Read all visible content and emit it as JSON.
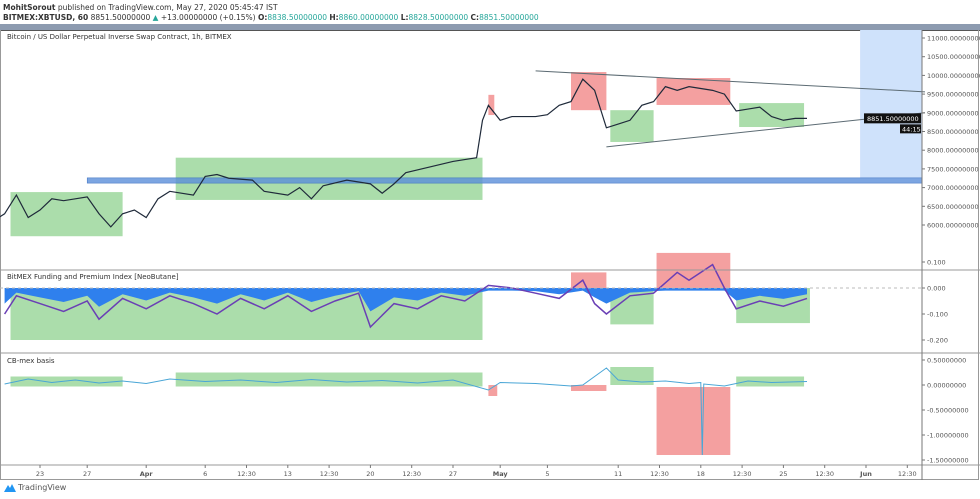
{
  "header": {
    "author": "MohitSorout",
    "published": "published on TradingView.com, May 27, 2020 05:45:47 IST",
    "symbol": "BITMEX:XBTUSD, 60",
    "last": "8851.50000000",
    "change": "+13.00000000 (+0.15%)",
    "o_label": "O:",
    "o": "8838.50000000",
    "h_label": "H:",
    "h": "8860.00000000",
    "l_label": "L:",
    "l": "8828.50000000",
    "c_label": "C:",
    "c": "8851.50000000"
  },
  "panes": {
    "price_title": "Bitcoin / US Dollar Perpetual Inverse Swap Contract, 1h, BITMEX",
    "funding_title": "BitMEX Funding and Premium Index [NeoButane]",
    "basis_title": "CB-mex basis"
  },
  "price_label": "8851.50000000",
  "countdown": "44:15",
  "logo": "TradingView",
  "colors": {
    "green_zone": "#8fd18f",
    "red_zone": "#f08080",
    "blue_band": "#5b8fd9",
    "future_shade": "#cfe2fb",
    "price_line": "#1f2a3a",
    "funding_area": "#2f80ed",
    "funding_line": "#6a3fb5",
    "basis_line": "#4aa6d6",
    "trendline": "#5c6b73"
  },
  "chart_data": [
    {
      "type": "line",
      "title": "Bitcoin / US Dollar Perpetual Inverse Swap Contract, 1h, BITMEX",
      "ylim": [
        5500,
        11300
      ],
      "yticks": [
        "11000.00000000",
        "10500.00000000",
        "10000.00000000",
        "9500.00000000",
        "9000.00000000",
        "8500.00000000",
        "8000.00000000",
        "7500.00000000",
        "7000.00000000",
        "6500.00000000",
        "6000.00000000"
      ],
      "xticks": [
        [
          "2020-03-23",
          "23"
        ],
        [
          "2020-03-27",
          "27"
        ],
        [
          "2020-04-01",
          "Apr"
        ],
        [
          "2020-04-06",
          "6"
        ],
        [
          "2020-04-09T12:00",
          "12:30"
        ],
        [
          "2020-04-13",
          "13"
        ],
        [
          "2020-04-16T12:00",
          "12:30"
        ],
        [
          "2020-04-20",
          "20"
        ],
        [
          "2020-04-23T12:00",
          "12:30"
        ],
        [
          "2020-04-27",
          "27"
        ],
        [
          "2020-05-01",
          "May"
        ],
        [
          "2020-05-05",
          "5"
        ],
        [
          "2020-05-11",
          "11"
        ],
        [
          "2020-05-14T12:00",
          "12:30"
        ],
        [
          "2020-05-18",
          "18"
        ],
        [
          "2020-05-21T12:00",
          "12:30"
        ],
        [
          "2020-05-25",
          "25"
        ],
        [
          "2020-05-28T12:00",
          "12:30"
        ],
        [
          "2020-06-01",
          "Jun"
        ],
        [
          "2020-06-04T12:00",
          "12:30"
        ]
      ],
      "series": [
        {
          "x": [
            "2020-03-19T12:00",
            "2020-03-20",
            "2020-03-21",
            "2020-03-22",
            "2020-03-23",
            "2020-03-24",
            "2020-03-25",
            "2020-03-26",
            "2020-03-27",
            "2020-03-28",
            "2020-03-29",
            "2020-03-30",
            "2020-03-31",
            "2020-04-01",
            "2020-04-02",
            "2020-04-03",
            "2020-04-05",
            "2020-04-06",
            "2020-04-07",
            "2020-04-08",
            "2020-04-10",
            "2020-04-11",
            "2020-04-13",
            "2020-04-14",
            "2020-04-15",
            "2020-04-16",
            "2020-04-18",
            "2020-04-20",
            "2020-04-21",
            "2020-04-22",
            "2020-04-23",
            "2020-04-25",
            "2020-04-27",
            "2020-04-28",
            "2020-04-29",
            "2020-04-29T12:00",
            "2020-04-30",
            "2020-05-01",
            "2020-05-02",
            "2020-05-04",
            "2020-05-05",
            "2020-05-06",
            "2020-05-07",
            "2020-05-08",
            "2020-05-09",
            "2020-05-10",
            "2020-05-11",
            "2020-05-12",
            "2020-05-13",
            "2020-05-14",
            "2020-05-15",
            "2020-05-16",
            "2020-05-17",
            "2020-05-18",
            "2020-05-19",
            "2020-05-20",
            "2020-05-21",
            "2020-05-22",
            "2020-05-23",
            "2020-05-24",
            "2020-05-25",
            "2020-05-26",
            "2020-05-27"
          ],
          "y": [
            6200,
            6300,
            6800,
            6200,
            6400,
            6700,
            6650,
            6700,
            6750,
            6300,
            5950,
            6300,
            6400,
            6200,
            6700,
            6900,
            6800,
            7300,
            7350,
            7250,
            7200,
            6900,
            6800,
            7000,
            6700,
            7050,
            7200,
            7100,
            6850,
            7100,
            7400,
            7550,
            7700,
            7750,
            7800,
            8800,
            9200,
            8800,
            8900,
            8900,
            8950,
            9200,
            9300,
            9900,
            9600,
            8600,
            8700,
            8800,
            9200,
            9300,
            9700,
            9600,
            9700,
            9650,
            9600,
            9500,
            9050,
            9100,
            9150,
            8900,
            8800,
            8850,
            8851.5
          ]
        }
      ],
      "zones": [
        {
          "color": "green",
          "x": [
            "2020-03-20T12:00",
            "2020-03-30"
          ],
          "y": [
            5700,
            6880
          ]
        },
        {
          "color": "green",
          "x": [
            "2020-04-03T12:00",
            "2020-04-29T12:00"
          ],
          "y": [
            6670,
            7800
          ]
        },
        {
          "color": "red",
          "x": [
            "2020-04-30",
            "2020-04-30T12:00"
          ],
          "y": [
            8940,
            9480
          ]
        },
        {
          "color": "red",
          "x": [
            "2020-05-07",
            "2020-05-10"
          ],
          "y": [
            9070,
            10090
          ]
        },
        {
          "color": "green",
          "x": [
            "2020-05-10T08:00",
            "2020-05-14"
          ],
          "y": [
            8220,
            9070
          ]
        },
        {
          "color": "red",
          "x": [
            "2020-05-14T06:00",
            "2020-05-20T12:00"
          ],
          "y": [
            9210,
            9930
          ]
        },
        {
          "color": "green",
          "x": [
            "2020-05-21T06:00",
            "2020-05-26T18:00"
          ],
          "y": [
            8620,
            9260
          ]
        }
      ],
      "horizontal_band": {
        "x_start": "2020-03-27",
        "y": [
          7120,
          7260
        ]
      },
      "future_shade": {
        "x": [
          "2020-05-31T12:00",
          "2020-06-06"
        ],
        "y": [
          7260,
          11300
        ]
      },
      "trendlines": [
        {
          "from": [
            "2020-05-04",
            10120
          ],
          "to": [
            "2020-06-06",
            9560
          ]
        },
        {
          "from": [
            "2020-05-10",
            8090
          ],
          "to": [
            "2020-06-06",
            9000
          ]
        }
      ]
    },
    {
      "type": "area",
      "title": "BitMEX Funding and Premium Index [NeoButane]",
      "ylim": [
        -0.23,
        0.15
      ],
      "yticks": [
        [
          "0.100",
          0.1
        ],
        [
          "0.000",
          0
        ],
        [
          "-0.100",
          -0.1
        ],
        [
          "-0.200",
          -0.2
        ]
      ],
      "series": [
        {
          "x": [
            "2020-03-20",
            "2020-03-21",
            "2020-03-23",
            "2020-03-25",
            "2020-03-27",
            "2020-03-28",
            "2020-03-30",
            "2020-04-01",
            "2020-04-03",
            "2020-04-05",
            "2020-04-07",
            "2020-04-09",
            "2020-04-11",
            "2020-04-13",
            "2020-04-15",
            "2020-04-17",
            "2020-04-19",
            "2020-04-20",
            "2020-04-22",
            "2020-04-24",
            "2020-04-26",
            "2020-04-28",
            "2020-04-30",
            "2020-05-02",
            "2020-05-04",
            "2020-05-06",
            "2020-05-08",
            "2020-05-09",
            "2020-05-10",
            "2020-05-12",
            "2020-05-14",
            "2020-05-15",
            "2020-05-16",
            "2020-05-17",
            "2020-05-19",
            "2020-05-20",
            "2020-05-21",
            "2020-05-23",
            "2020-05-25",
            "2020-05-27"
          ],
          "y": [
            -0.1,
            -0.03,
            -0.06,
            -0.09,
            -0.05,
            -0.12,
            -0.04,
            -0.08,
            -0.03,
            -0.06,
            -0.1,
            -0.04,
            -0.08,
            -0.03,
            -0.09,
            -0.05,
            -0.02,
            -0.15,
            -0.06,
            -0.08,
            -0.03,
            -0.05,
            0.01,
            0.0,
            -0.02,
            -0.04,
            0.03,
            -0.06,
            -0.1,
            -0.03,
            -0.02,
            0.02,
            0.06,
            0.03,
            0.09,
            0.0,
            -0.08,
            -0.05,
            -0.07,
            -0.04
          ]
        }
      ],
      "zones": [
        {
          "color": "green",
          "x": [
            "2020-03-20T12:00",
            "2020-04-29T12:00"
          ],
          "y": [
            -0.2,
            0
          ]
        },
        {
          "color": "red",
          "x": [
            "2020-05-07",
            "2020-05-10"
          ],
          "y": [
            0,
            0.06
          ]
        },
        {
          "color": "green",
          "x": [
            "2020-05-10T08:00",
            "2020-05-14"
          ],
          "y": [
            -0.14,
            0
          ]
        },
        {
          "color": "red",
          "x": [
            "2020-05-14T06:00",
            "2020-05-20T12:00"
          ],
          "y": [
            0,
            0.135
          ]
        },
        {
          "color": "green",
          "x": [
            "2020-05-21",
            "2020-05-27T06:00"
          ],
          "y": [
            -0.135,
            0
          ]
        }
      ]
    },
    {
      "type": "line",
      "title": "CB-mex basis",
      "ylim": [
        -1.55,
        0.6
      ],
      "yticks": [
        [
          "0.50000000",
          0.5
        ],
        [
          "0.00000000",
          0
        ],
        [
          "-0.50000000",
          -0.5
        ],
        [
          "-1.00000000",
          -1
        ],
        [
          "-1.50000000",
          -1.5
        ]
      ],
      "series": [
        {
          "x": [
            "2020-03-20",
            "2020-03-22",
            "2020-03-24",
            "2020-03-26",
            "2020-03-28",
            "2020-03-30",
            "2020-04-01",
            "2020-04-03",
            "2020-04-06",
            "2020-04-09",
            "2020-04-12",
            "2020-04-15",
            "2020-04-18",
            "2020-04-21",
            "2020-04-24",
            "2020-04-27",
            "2020-04-30",
            "2020-05-01",
            "2020-05-04",
            "2020-05-07",
            "2020-05-08",
            "2020-05-10",
            "2020-05-11",
            "2020-05-13",
            "2020-05-15",
            "2020-05-17",
            "2020-05-18",
            "2020-05-18T03:00",
            "2020-05-18T06:00",
            "2020-05-20",
            "2020-05-22",
            "2020-05-24",
            "2020-05-27"
          ],
          "y": [
            0.02,
            0.12,
            0.05,
            0.1,
            0.04,
            0.08,
            0.03,
            0.12,
            0.07,
            0.1,
            0.05,
            0.11,
            0.06,
            0.09,
            0.04,
            0.1,
            -0.1,
            0.05,
            0.03,
            -0.02,
            0.0,
            0.34,
            0.1,
            0.06,
            0.08,
            0.03,
            0.05,
            -1.4,
            0.02,
            -0.02,
            0.08,
            0.05,
            0.07
          ]
        }
      ],
      "zones": [
        {
          "color": "green",
          "x": [
            "2020-03-20T12:00",
            "2020-03-30"
          ],
          "y": [
            -0.03,
            0.17
          ]
        },
        {
          "color": "green",
          "x": [
            "2020-04-03T12:00",
            "2020-04-29T12:00"
          ],
          "y": [
            -0.03,
            0.25
          ]
        },
        {
          "color": "red",
          "x": [
            "2020-04-30",
            "2020-04-30T18:00"
          ],
          "y": [
            -0.22,
            0
          ]
        },
        {
          "color": "red",
          "x": [
            "2020-05-07",
            "2020-05-10"
          ],
          "y": [
            -0.12,
            0
          ]
        },
        {
          "color": "green",
          "x": [
            "2020-05-10T08:00",
            "2020-05-14"
          ],
          "y": [
            0,
            0.36
          ]
        },
        {
          "color": "red",
          "x": [
            "2020-05-14T06:00",
            "2020-05-20T12:00"
          ],
          "y": [
            -1.4,
            -0.04
          ]
        },
        {
          "color": "green",
          "x": [
            "2020-05-21",
            "2020-05-26T18:00"
          ],
          "y": [
            -0.03,
            0.17
          ]
        }
      ]
    }
  ]
}
